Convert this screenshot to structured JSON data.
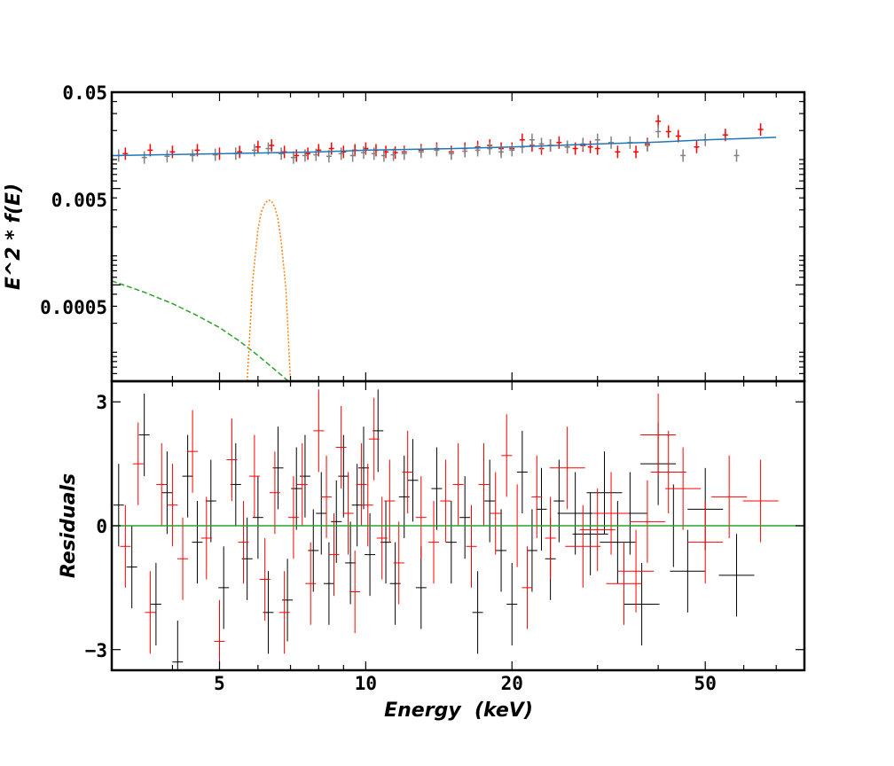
{
  "chart_data": [
    {
      "type": "scatter",
      "panel": "top",
      "ylabel": "E^2 * f(E)",
      "yscale": "log",
      "xscale": "log",
      "xlim": [
        3,
        80
      ],
      "ylim": [
        5e-05,
        0.05
      ],
      "ytick_labels": [
        "0.05",
        "0.005",
        "0.0005"
      ],
      "yticks": [
        0.05,
        0.005,
        0.0005
      ],
      "series": [
        {
          "kind": "data",
          "color": "#ff0000",
          "x": [
            3.2,
            3.6,
            4.0,
            4.5,
            5.0,
            5.5,
            6.0,
            6.4,
            6.8,
            7.2,
            7.6,
            8.0,
            8.5,
            9.0,
            9.5,
            10.0,
            10.5,
            11.0,
            11.5,
            12,
            13,
            14,
            15,
            16,
            17,
            18,
            19,
            20,
            21,
            22,
            23,
            24,
            25,
            26,
            27,
            28,
            29,
            30,
            33,
            36,
            38,
            40,
            42,
            44,
            48,
            55,
            65
          ],
          "y": [
            0.0115,
            0.0125,
            0.012,
            0.0125,
            0.0115,
            0.012,
            0.0135,
            0.014,
            0.012,
            0.011,
            0.0115,
            0.0125,
            0.013,
            0.012,
            0.0125,
            0.013,
            0.0125,
            0.012,
            0.0118,
            0.012,
            0.0125,
            0.013,
            0.012,
            0.013,
            0.0135,
            0.014,
            0.013,
            0.013,
            0.016,
            0.014,
            0.013,
            0.014,
            0.015,
            0.0135,
            0.013,
            0.014,
            0.0135,
            0.013,
            0.012,
            0.012,
            0.0145,
            0.025,
            0.0195,
            0.0175,
            0.0135,
            0.018,
            0.0205
          ]
        },
        {
          "kind": "data",
          "color": "#808080",
          "x": [
            3.1,
            3.5,
            3.9,
            4.4,
            4.9,
            5.4,
            5.9,
            6.3,
            6.7,
            7.1,
            7.5,
            7.9,
            8.4,
            8.9,
            9.4,
            9.9,
            10.4,
            10.9,
            11.4,
            12,
            13,
            14,
            15,
            16,
            17,
            18,
            19,
            20,
            21,
            22,
            23,
            24,
            26,
            28,
            30,
            32,
            35,
            38,
            40,
            45,
            50,
            58
          ],
          "y": [
            0.011,
            0.0105,
            0.0108,
            0.011,
            0.0112,
            0.0115,
            0.0125,
            0.013,
            0.0115,
            0.0105,
            0.011,
            0.0112,
            0.0108,
            0.0115,
            0.011,
            0.0118,
            0.0115,
            0.011,
            0.0112,
            0.0115,
            0.012,
            0.0125,
            0.0115,
            0.0122,
            0.0125,
            0.013,
            0.012,
            0.0125,
            0.0135,
            0.016,
            0.0145,
            0.014,
            0.0135,
            0.0145,
            0.016,
            0.015,
            0.015,
            0.014,
            0.0195,
            0.011,
            0.016,
            0.011
          ]
        },
        {
          "kind": "model",
          "color": "#1f77b4",
          "x": [
            3,
            5,
            8,
            10,
            15,
            20,
            30,
            40,
            50,
            60,
            70
          ],
          "y": [
            0.011,
            0.0115,
            0.012,
            0.0125,
            0.013,
            0.0135,
            0.0145,
            0.0152,
            0.016,
            0.0165,
            0.017
          ]
        },
        {
          "kind": "model",
          "color": "#2ca02c",
          "style": "dashed",
          "x": [
            3,
            3.5,
            4,
            4.5,
            5,
            5.5,
            6,
            6.5,
            7
          ],
          "y": [
            0.00055,
            0.00042,
            0.00032,
            0.00024,
            0.00018,
            0.00013,
            9.25e-05,
            6.6e-05,
            4.8e-05
          ]
        },
        {
          "kind": "model",
          "color": "#ff7f0e",
          "style": "dotted",
          "x": [
            5.7,
            5.85,
            6.0,
            6.1,
            6.2,
            6.3,
            6.4,
            6.5,
            6.6,
            6.7,
            6.85,
            7.0
          ],
          "y": [
            5e-05,
            0.00055,
            0.0019,
            0.0029,
            0.0035,
            0.0038,
            0.0037,
            0.0032,
            0.0024,
            0.0014,
            0.00045,
            5e-05
          ]
        }
      ]
    },
    {
      "type": "scatter",
      "panel": "bottom",
      "xlabel": "Energy  (keV)",
      "ylabel": "Residuals",
      "xscale": "log",
      "xlim": [
        3,
        80
      ],
      "ylim": [
        -3.5,
        3.5
      ],
      "yticks": [
        3,
        0,
        -3
      ],
      "ytick_labels": [
        "3",
        "0",
        "−3"
      ],
      "xticks": [
        5,
        10,
        20,
        50
      ],
      "xtick_labels": [
        "5",
        "10",
        "20",
        "50"
      ],
      "series": [
        {
          "kind": "residuals",
          "color": "#000000",
          "x": [
            3.1,
            3.3,
            3.5,
            3.7,
            3.9,
            4.1,
            4.3,
            4.5,
            4.8,
            5.1,
            5.4,
            5.7,
            6.0,
            6.3,
            6.6,
            6.9,
            7.2,
            7.5,
            7.8,
            8.1,
            8.4,
            8.7,
            9.0,
            9.3,
            9.6,
            9.9,
            10.2,
            10.6,
            11,
            11.5,
            12,
            12.5,
            13,
            14,
            15,
            16,
            17,
            18,
            19,
            20,
            21,
            22,
            23,
            24,
            25,
            27,
            29,
            31,
            33,
            35,
            37,
            40,
            43,
            46,
            50,
            58
          ],
          "y": [
            0.5,
            -1.0,
            2.2,
            -1.9,
            0.8,
            -3.3,
            1.2,
            -0.4,
            0.6,
            -1.5,
            1.0,
            -0.8,
            0.2,
            -2.1,
            1.4,
            -1.8,
            0.9,
            1.2,
            -0.6,
            0.3,
            -1.4,
            0.1,
            1.2,
            -0.9,
            0.5,
            1.4,
            -0.7,
            2.3,
            -0.4,
            -1.4,
            0.7,
            1.1,
            -1.5,
            0.9,
            -0.4,
            0.2,
            -2.1,
            0.6,
            -0.6,
            -1.9,
            1.3,
            -0.6,
            0.4,
            -0.8,
            0.6,
            0.3,
            -0.2,
            0.8,
            -0.4,
            0.3,
            -1.9,
            1.5,
            0.0,
            -1.1,
            0.4,
            -1.2
          ]
        },
        {
          "kind": "residuals",
          "color": "#ff0000",
          "x": [
            3.2,
            3.4,
            3.6,
            3.8,
            4.0,
            4.2,
            4.4,
            4.7,
            5.0,
            5.3,
            5.6,
            5.9,
            6.2,
            6.5,
            6.8,
            7.1,
            7.4,
            7.7,
            8.0,
            8.3,
            8.6,
            8.9,
            9.2,
            9.5,
            9.8,
            10.1,
            10.4,
            10.8,
            11.2,
            11.7,
            12.2,
            13,
            13.8,
            14.6,
            15.5,
            16.5,
            17.5,
            18.5,
            19.5,
            20.5,
            21.5,
            22.5,
            24,
            26,
            28,
            30,
            32,
            34,
            36,
            38,
            40,
            42,
            45,
            50,
            56,
            65
          ],
          "y": [
            -0.5,
            1.5,
            -2.1,
            1.0,
            0.5,
            -0.8,
            1.8,
            -0.3,
            -2.8,
            1.6,
            -0.4,
            1.2,
            -1.3,
            0.8,
            -2.1,
            0.2,
            1.0,
            -1.4,
            2.3,
            0.7,
            -0.7,
            1.9,
            0.3,
            -1.6,
            1.0,
            0.5,
            2.1,
            -0.3,
            0.6,
            -0.9,
            1.3,
            0.2,
            -0.4,
            0.6,
            1.0,
            -0.5,
            1.0,
            0.3,
            1.7,
            0.0,
            -1.5,
            0.7,
            -0.3,
            1.4,
            -0.5,
            -0.1,
            0.3,
            -1.4,
            -1.1,
            0.1,
            2.2,
            1.3,
            0.9,
            -0.4,
            0.7,
            0.6
          ]
        },
        {
          "kind": "zero-line",
          "color": "#2ca02c",
          "y": 0
        }
      ]
    }
  ]
}
